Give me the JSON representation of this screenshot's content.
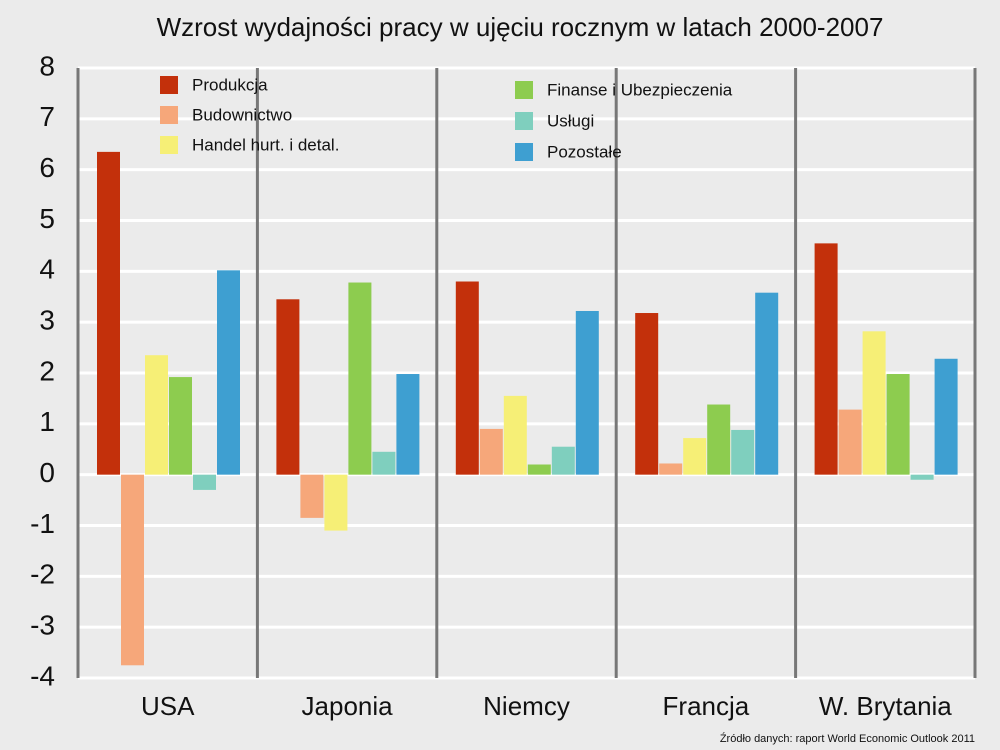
{
  "chart_data": {
    "type": "bar",
    "title": "Wzrost wydajności pracy w ujęciu rocznym w latach 2000-2007",
    "source": "Źródło danych: raport World Economic Outlook 2011",
    "categories": [
      "USA",
      "Japonia",
      "Niemcy",
      "Francja",
      "W. Brytania"
    ],
    "series": [
      {
        "name": "Produkcja",
        "color": "#c3300b",
        "values": [
          6.35,
          3.45,
          3.8,
          3.18,
          4.55
        ]
      },
      {
        "name": "Budownictwo",
        "color": "#f6a77a",
        "values": [
          -3.75,
          -0.85,
          0.9,
          0.22,
          1.28
        ]
      },
      {
        "name": "Handel hurt. i detal.",
        "color": "#f6ef76",
        "values": [
          2.35,
          -1.1,
          1.55,
          0.72,
          2.82
        ]
      },
      {
        "name": "Finanse i Ubezpieczenia",
        "color": "#8dcc4f",
        "values": [
          1.92,
          3.78,
          0.2,
          1.38,
          1.98
        ]
      },
      {
        "name": "Usługi",
        "color": "#7fcfbe",
        "values": [
          -0.3,
          0.45,
          0.55,
          0.88,
          -0.1
        ]
      },
      {
        "name": "Pozostałe",
        "color": "#3e9fd1",
        "values": [
          4.02,
          1.98,
          3.22,
          3.58,
          2.28
        ]
      }
    ],
    "ylim": [
      -4,
      8
    ],
    "yticks": [
      -4,
      -3,
      -2,
      -1,
      0,
      1,
      2,
      3,
      4,
      5,
      6,
      7,
      8
    ],
    "grid": true
  }
}
